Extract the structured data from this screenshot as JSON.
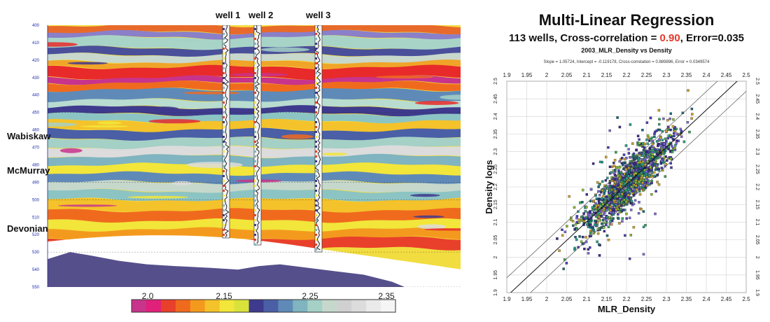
{
  "seismic_section": {
    "wells": [
      "well 1",
      "well 2",
      "well 3"
    ],
    "formations": [
      "Wabiskaw",
      "McMurray",
      "Devonian"
    ],
    "depth_ticks": [
      "400",
      "410",
      "420",
      "430",
      "440",
      "450",
      "460",
      "470",
      "480",
      "490",
      "500",
      "510",
      "520",
      "530",
      "540",
      "550"
    ],
    "colorbar_ticks": [
      "2.0",
      "2.15",
      "2.25",
      "2.35"
    ],
    "colorbar_range": [
      1.95,
      2.42
    ],
    "colorbar_colors": [
      "#c8348c",
      "#e0207a",
      "#e8402a",
      "#f06a1e",
      "#f39a1e",
      "#f4c22a",
      "#f2e63a",
      "#d8e23a",
      "#3e3a8e",
      "#4a5fa6",
      "#5f8ab8",
      "#7fb4c0",
      "#a4d0c6",
      "#c6d8cc",
      "#d0d0d0",
      "#dcdcdc",
      "#eaeaea",
      "#f5f5f5"
    ]
  },
  "regression": {
    "title": "Multi-Linear Regression",
    "subtitle_prefix": "113 wells, Cross-correlation = ",
    "subtitle_value": "0.90",
    "subtitle_suffix": ", Error=0.035",
    "highlight_color": "#e23a2a"
  },
  "chart_data": {
    "type": "scatter",
    "title": "2003_MLR_Density vs Density",
    "subtitle": "Slope = 1.05724, Intercept = -0.119178, Cross-correlation = 0.889896, Error = 0.0349574",
    "xlabel": "MLR_Density",
    "ylabel": "Density logs",
    "xlim": [
      1.9,
      2.5
    ],
    "ylim": [
      1.9,
      2.5
    ],
    "xticks": [
      "1.9",
      "1.95",
      "2",
      "2.05",
      "2.1",
      "2.15",
      "2.2",
      "2.25",
      "2.3",
      "2.35",
      "2.4",
      "2.45",
      "2.5"
    ],
    "yticks": [
      "1.9",
      "1.95",
      "2",
      "2.05",
      "2.1",
      "2.15",
      "2.2",
      "2.25",
      "2.3",
      "2.35",
      "2.4",
      "2.45",
      "2.5"
    ],
    "regression_line": {
      "slope": 1.05724,
      "intercept": -0.119178
    },
    "error_band": 0.035,
    "point_cloud": {
      "count": 1400,
      "x_range": [
        2.02,
        2.38
      ],
      "center": [
        2.2,
        2.2
      ]
    },
    "grid": true
  }
}
